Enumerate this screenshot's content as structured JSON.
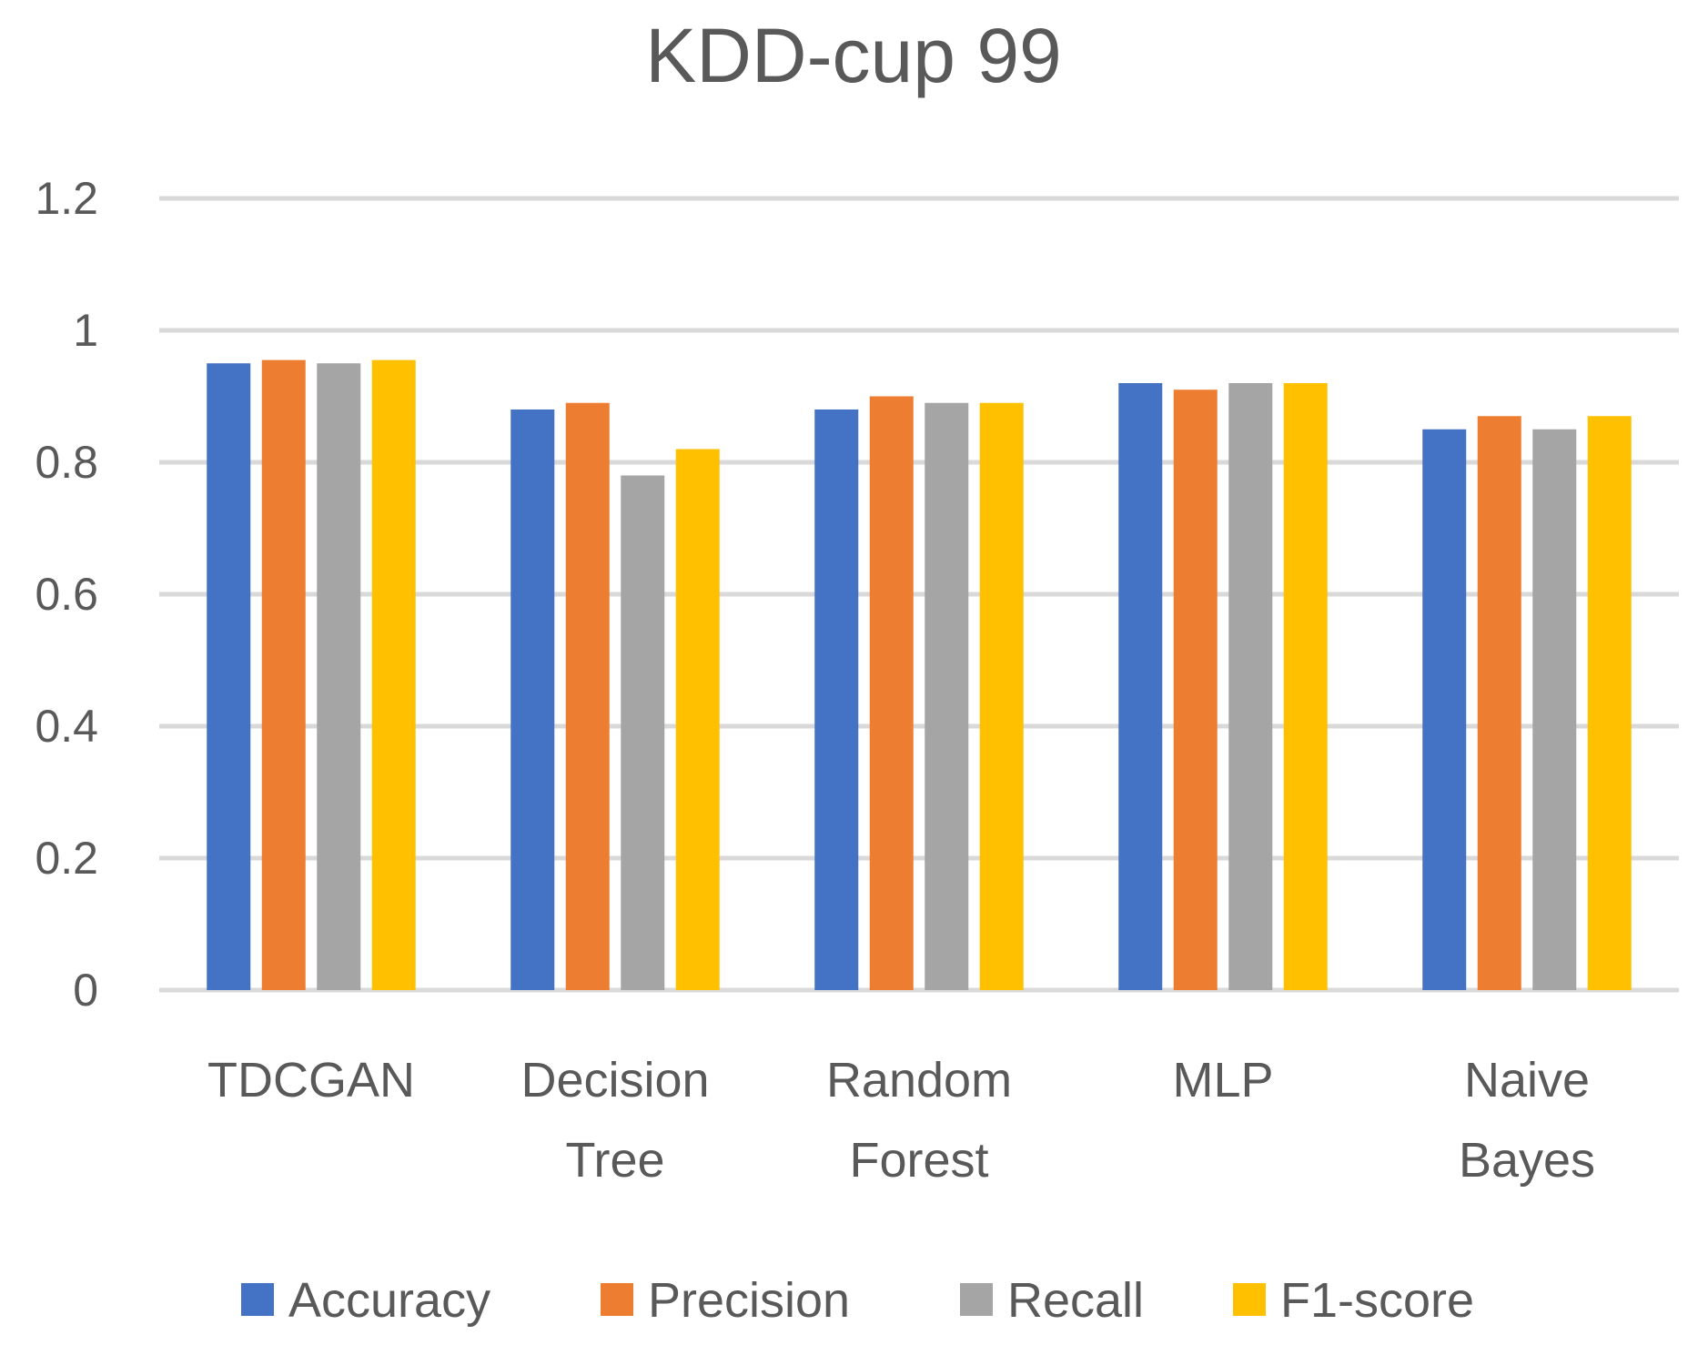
{
  "chart_data": {
    "type": "bar",
    "title": "KDD-cup 99",
    "categories": [
      [
        "TDCGAN"
      ],
      [
        "Decision",
        "Tree"
      ],
      [
        "Random",
        "Forest"
      ],
      [
        "MLP"
      ],
      [
        "Naive",
        "Bayes"
      ]
    ],
    "series": [
      {
        "name": "Accuracy",
        "color": "#4472c4",
        "values": [
          0.95,
          0.88,
          0.88,
          0.92,
          0.85
        ]
      },
      {
        "name": "Precision",
        "color": "#ed7d31",
        "values": [
          0.955,
          0.89,
          0.9,
          0.91,
          0.87
        ]
      },
      {
        "name": "Recall",
        "color": "#a5a5a5",
        "values": [
          0.95,
          0.78,
          0.89,
          0.92,
          0.85
        ]
      },
      {
        "name": "F1-score",
        "color": "#ffc000",
        "values": [
          0.955,
          0.82,
          0.89,
          0.92,
          0.87
        ]
      }
    ],
    "yticks": [
      "0",
      "0.2",
      "0.4",
      "0.6",
      "0.8",
      "1",
      "1.2"
    ],
    "ylim": [
      0,
      1.2
    ],
    "xlabel": "",
    "ylabel": "",
    "legend_position": "bottom",
    "grid": true
  }
}
